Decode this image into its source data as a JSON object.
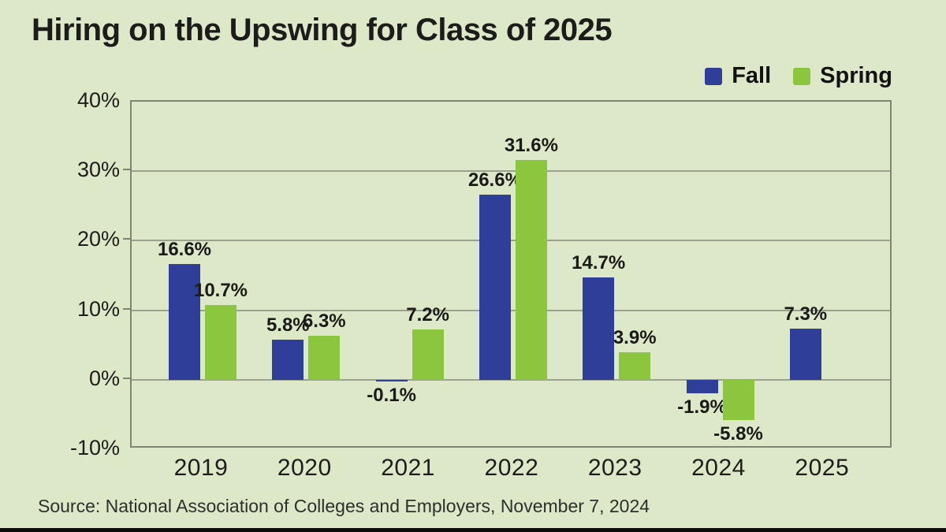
{
  "title": "Hiring on the Upswing for Class of 2025",
  "source": "Source: National Association of Colleges and Employers, November 7, 2024",
  "colors": {
    "background": "#dde8c8",
    "fall": "#2f3e99",
    "spring": "#8cc63f",
    "gridline": "#9aa18c",
    "plot_border": "#7e8671",
    "text": "#1d1d1b"
  },
  "chart_data": {
    "type": "bar",
    "title": "Hiring on the Upswing for Class of 2025",
    "categories": [
      "2019",
      "2020",
      "2021",
      "2022",
      "2023",
      "2024",
      "2025"
    ],
    "series": [
      {
        "name": "Fall",
        "color": "#2f3e99",
        "values": [
          16.6,
          5.8,
          -0.1,
          26.6,
          14.7,
          -1.9,
          7.3
        ]
      },
      {
        "name": "Spring",
        "color": "#8cc63f",
        "values": [
          10.7,
          6.3,
          7.2,
          31.6,
          3.9,
          -5.8,
          null
        ]
      }
    ],
    "value_labels": [
      [
        "16.6%",
        "10.7%"
      ],
      [
        "5.8%",
        "6.3%"
      ],
      [
        "-0.1%",
        "7.2%"
      ],
      [
        "26.6%",
        "31.6%"
      ],
      [
        "14.7%",
        "3.9%"
      ],
      [
        "-1.9%",
        "-5.8%"
      ],
      [
        "7.3%",
        null
      ]
    ],
    "xlabel": "",
    "ylabel": "",
    "ylim": [
      -10,
      40
    ],
    "y_ticks": [
      40,
      30,
      20,
      10,
      0,
      -10
    ],
    "y_tick_labels": [
      "40%",
      "30%",
      "20%",
      "10%",
      "0%",
      "-10%"
    ],
    "grid": true,
    "legend_position": "top-right"
  }
}
